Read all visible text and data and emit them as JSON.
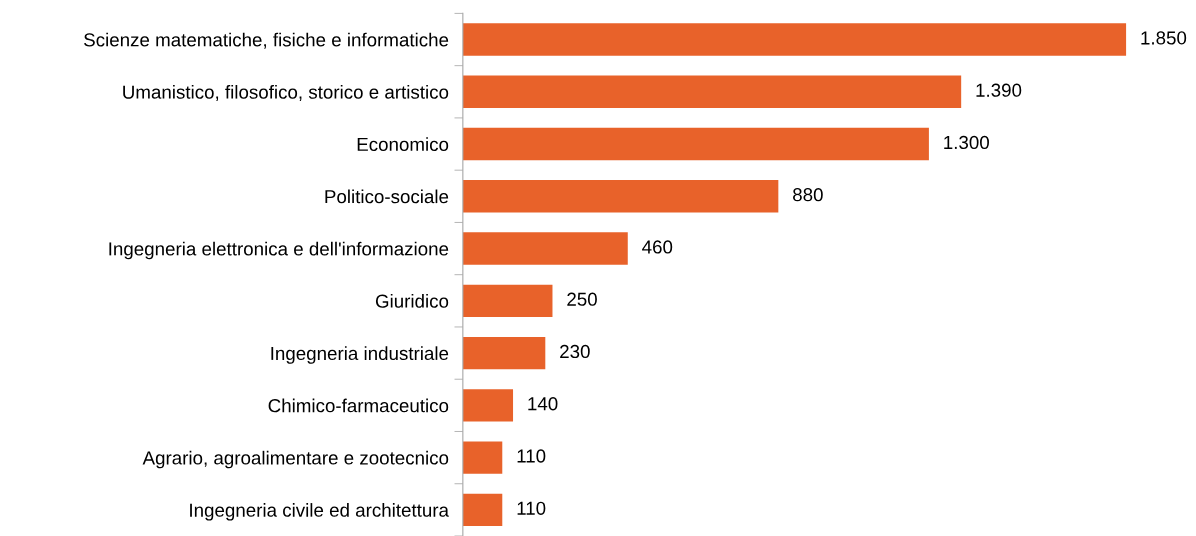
{
  "chart_data": {
    "type": "bar",
    "orientation": "horizontal",
    "categories": [
      "Scienze matematiche, fisiche e informatiche",
      "Umanistico, filosofico, storico e artistico",
      "Economico",
      "Politico-sociale",
      "Ingegneria elettronica e dell'informazione",
      "Giuridico",
      "Ingegneria industriale",
      "Chimico-farmaceutico",
      "Agrario, agroalimentare e zootecnico",
      "Ingegneria civile ed architettura"
    ],
    "values": [
      1850,
      1390,
      1300,
      880,
      460,
      250,
      230,
      140,
      110,
      110
    ],
    "value_labels": [
      "1.850",
      "1.390",
      "1.300",
      "880",
      "460",
      "250",
      "230",
      "140",
      "110",
      "110"
    ],
    "color": "#e8622a",
    "grid": false,
    "legend": false,
    "tick_labels": "y"
  }
}
